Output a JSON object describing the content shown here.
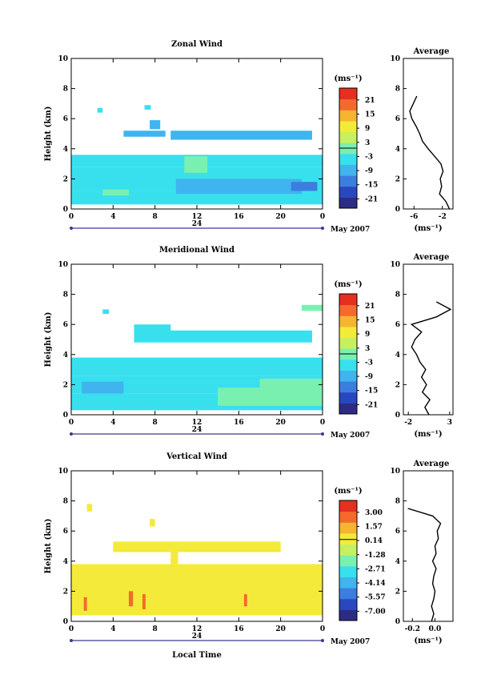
{
  "chart_data": [
    {
      "type": "heatmap",
      "title": "Zonal Wind",
      "xlabel": "",
      "ylabel": "Height (km)",
      "xlim": [
        0,
        24
      ],
      "ylim": [
        0,
        10
      ],
      "x_ticks": [
        "0",
        "4",
        "8",
        "12",
        "16",
        "20",
        "0"
      ],
      "y_ticks": [
        "0",
        "2",
        "4",
        "6",
        "8",
        "10"
      ],
      "date_label": "24",
      "month_label": "May 2007",
      "colorbar": {
        "unit_label": "(ms⁻¹)",
        "ticks": [
          "21",
          "15",
          "9",
          "3",
          "-3",
          "-9",
          "-15",
          "-21"
        ],
        "range": [
          -24,
          24
        ]
      },
      "average_profile": {
        "title": "Average",
        "xlabel": "(ms⁻¹)",
        "x_ticks": [
          "-6",
          "-2"
        ],
        "xlim": [
          -7.5,
          -0.5
        ],
        "heights": [
          0.0,
          0.5,
          1.0,
          1.5,
          2.0,
          2.5,
          3.0,
          3.5,
          4.0,
          4.5,
          5.0,
          5.5,
          6.0,
          6.5,
          7.0,
          7.5
        ],
        "values": [
          -1.0,
          -1.5,
          -2.4,
          -2.1,
          -2.3,
          -1.9,
          -2.2,
          -3.1,
          -4.0,
          -4.8,
          -5.2,
          -5.7,
          -6.3,
          -6.6,
          -6.1,
          -5.6
        ]
      },
      "blocks": [
        {
          "x0": 0.0,
          "x1": 24.0,
          "y0": 0.3,
          "y1": 1.2,
          "value": -3
        },
        {
          "x0": 0.0,
          "x1": 24.0,
          "y0": 1.2,
          "y1": 2.8,
          "value": -5
        },
        {
          "x0": 0.0,
          "x1": 24.0,
          "y0": 2.8,
          "y1": 3.6,
          "value": -3
        },
        {
          "x0": 10.0,
          "x1": 22.0,
          "y0": 1.0,
          "y1": 2.0,
          "value": -8
        },
        {
          "x0": 21.0,
          "x1": 23.5,
          "y0": 1.2,
          "y1": 1.8,
          "value": -13
        },
        {
          "x0": 9.5,
          "x1": 23.0,
          "y0": 4.6,
          "y1": 5.2,
          "value": -7
        },
        {
          "x0": 5.0,
          "x1": 9.0,
          "y0": 4.8,
          "y1": 5.2,
          "value": -8
        },
        {
          "x0": 7.5,
          "x1": 8.5,
          "y0": 5.3,
          "y1": 5.9,
          "value": -10
        },
        {
          "x0": 2.5,
          "x1": 3.0,
          "y0": 6.4,
          "y1": 6.7,
          "value": -3
        },
        {
          "x0": 7.0,
          "x1": 7.6,
          "y0": 6.6,
          "y1": 6.9,
          "value": -3
        },
        {
          "x0": 10.8,
          "x1": 13.0,
          "y0": 2.4,
          "y1": 3.5,
          "value": 2
        },
        {
          "x0": 3.0,
          "x1": 5.5,
          "y0": 0.9,
          "y1": 1.3,
          "value": 1
        }
      ]
    },
    {
      "type": "heatmap",
      "title": "Meridional Wind",
      "xlabel": "",
      "ylabel": "Height (km)",
      "xlim": [
        0,
        24
      ],
      "ylim": [
        0,
        10
      ],
      "x_ticks": [
        "0",
        "4",
        "8",
        "12",
        "16",
        "20",
        "0"
      ],
      "y_ticks": [
        "0",
        "2",
        "4",
        "6",
        "8",
        "10"
      ],
      "date_label": "24",
      "month_label": "May 2007",
      "colorbar": {
        "unit_label": "(ms⁻¹)",
        "ticks": [
          "21",
          "15",
          "9",
          "3",
          "-3",
          "-9",
          "-15",
          "-21"
        ],
        "range": [
          -24,
          24
        ]
      },
      "average_profile": {
        "title": "Average",
        "xlabel": "(ms⁻¹)",
        "x_ticks": [
          "-2",
          "3"
        ],
        "xlim": [
          -2.6,
          3.4
        ],
        "heights": [
          0.0,
          0.5,
          1.0,
          1.5,
          2.0,
          2.5,
          3.0,
          3.5,
          4.0,
          4.5,
          5.0,
          5.5,
          6.0,
          6.5,
          7.0,
          7.5
        ],
        "values": [
          0.5,
          0.0,
          0.6,
          -0.3,
          0.2,
          -0.4,
          0.1,
          -0.6,
          -1.0,
          -1.6,
          -1.2,
          -0.4,
          -1.6,
          1.4,
          3.1,
          1.4
        ]
      },
      "blocks": [
        {
          "x0": 0.0,
          "x1": 24.0,
          "y0": 0.3,
          "y1": 1.4,
          "value": -3
        },
        {
          "x0": 0.0,
          "x1": 24.0,
          "y0": 1.4,
          "y1": 2.6,
          "value": -5
        },
        {
          "x0": 0.0,
          "x1": 24.0,
          "y0": 2.6,
          "y1": 3.8,
          "value": -3
        },
        {
          "x0": 1.0,
          "x1": 5.0,
          "y0": 1.4,
          "y1": 2.2,
          "value": -9
        },
        {
          "x0": 14.0,
          "x1": 24.0,
          "y0": 0.6,
          "y1": 1.8,
          "value": 1
        },
        {
          "x0": 18.0,
          "x1": 24.0,
          "y0": 1.0,
          "y1": 2.4,
          "value": 2
        },
        {
          "x0": 6.0,
          "x1": 23.0,
          "y0": 4.8,
          "y1": 5.6,
          "value": -3
        },
        {
          "x0": 6.0,
          "x1": 9.5,
          "y0": 5.5,
          "y1": 6.0,
          "value": -5
        },
        {
          "x0": 3.0,
          "x1": 3.6,
          "y0": 6.7,
          "y1": 7.0,
          "value": -3
        },
        {
          "x0": 22.0,
          "x1": 24.0,
          "y0": 6.9,
          "y1": 7.3,
          "value": 1
        }
      ]
    },
    {
      "type": "heatmap",
      "title": "Vertical Wind",
      "xlabel": "Local Time",
      "ylabel": "Height (km)",
      "xlim": [
        0,
        24
      ],
      "ylim": [
        0,
        10
      ],
      "x_ticks": [
        "0",
        "4",
        "8",
        "12",
        "16",
        "20",
        "0"
      ],
      "y_ticks": [
        "0",
        "2",
        "4",
        "6",
        "8",
        "10"
      ],
      "date_label": "24",
      "month_label": "May 2007",
      "colorbar": {
        "unit_label": "(ms⁻¹)",
        "ticks": [
          "3.00",
          "1.57",
          "0.14",
          "-1.28",
          "-2.71",
          "-4.14",
          "-5.57",
          "-7.00"
        ],
        "range": [
          -7.71,
          3.71
        ]
      },
      "average_profile": {
        "title": "Average",
        "xlabel": "(ms⁻¹)",
        "x_ticks": [
          "-0.2",
          "0.0"
        ],
        "xlim": [
          -0.28,
          0.16
        ],
        "heights": [
          0.0,
          0.5,
          1.0,
          1.5,
          2.0,
          2.5,
          3.0,
          3.5,
          4.0,
          4.5,
          5.0,
          5.5,
          6.0,
          6.5,
          7.0,
          7.5
        ],
        "values": [
          -0.03,
          -0.01,
          -0.03,
          -0.01,
          0.0,
          -0.02,
          -0.01,
          0.01,
          -0.02,
          0.01,
          0.0,
          0.03,
          0.02,
          0.05,
          -0.02,
          -0.24
        ]
      },
      "blocks": [
        {
          "x0": 0.0,
          "x1": 24.0,
          "y0": 0.4,
          "y1": 3.8,
          "value": 0.5
        },
        {
          "x0": 1.2,
          "x1": 1.5,
          "y0": 0.7,
          "y1": 1.6,
          "value": 2.0
        },
        {
          "x0": 5.5,
          "x1": 5.9,
          "y0": 1.0,
          "y1": 2.0,
          "value": 2.0
        },
        {
          "x0": 6.8,
          "x1": 7.1,
          "y0": 0.8,
          "y1": 1.8,
          "value": 2.0
        },
        {
          "x0": 16.5,
          "x1": 16.8,
          "y0": 1.0,
          "y1": 1.8,
          "value": 1.9
        },
        {
          "x0": 4.0,
          "x1": 20.0,
          "y0": 4.6,
          "y1": 5.3,
          "value": 0.4
        },
        {
          "x0": 9.5,
          "x1": 10.2,
          "y0": 3.8,
          "y1": 4.6,
          "value": 0.3
        },
        {
          "x0": 1.5,
          "x1": 2.0,
          "y0": 7.3,
          "y1": 7.8,
          "value": 0.5
        },
        {
          "x0": 7.5,
          "x1": 8.0,
          "y0": 6.3,
          "y1": 6.8,
          "value": 0.5
        }
      ]
    }
  ]
}
